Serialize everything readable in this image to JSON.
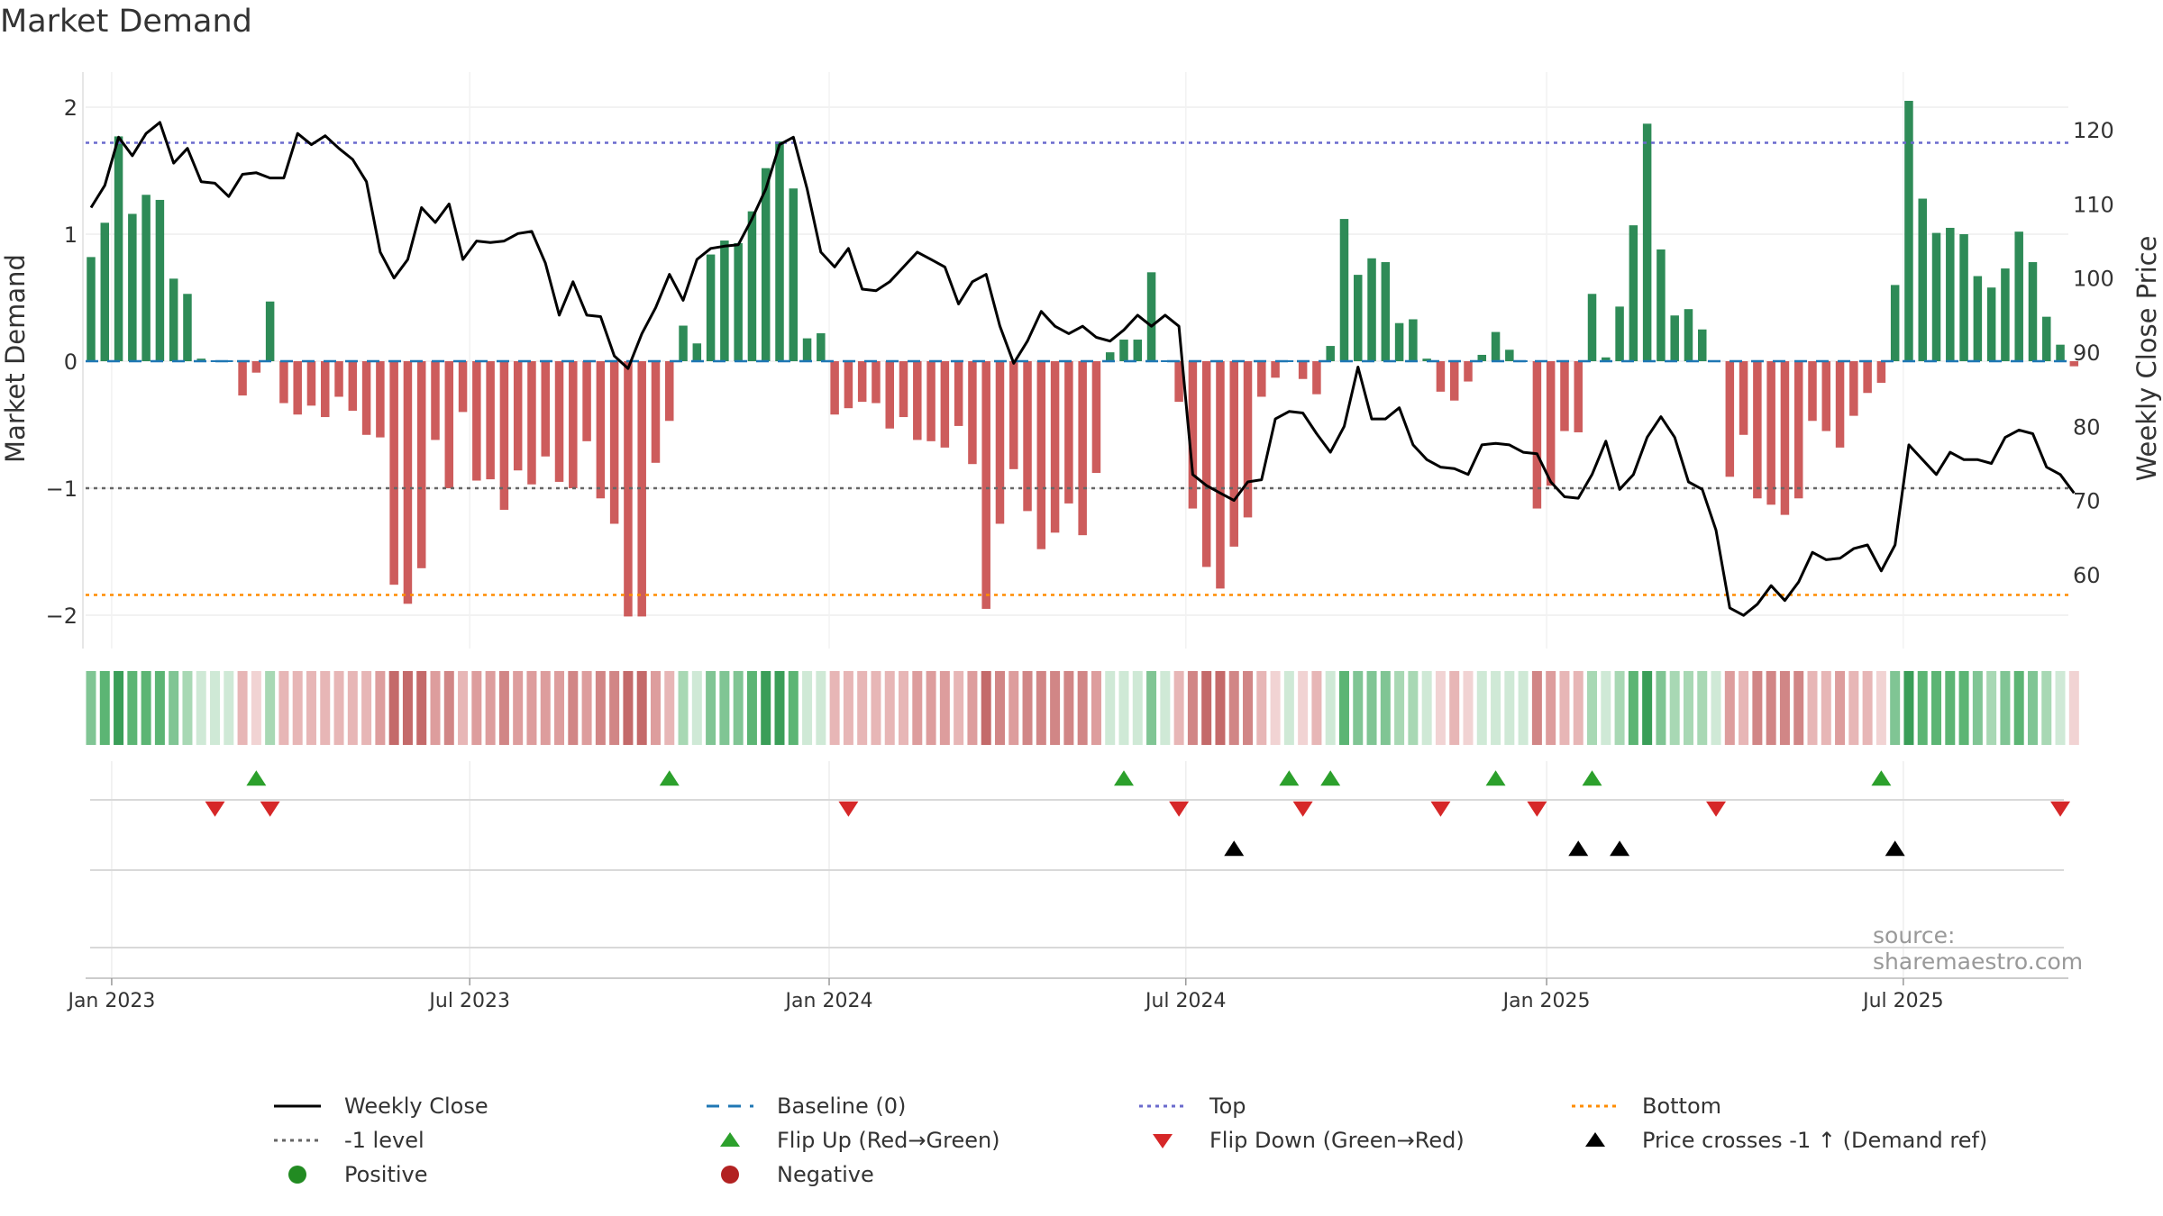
{
  "chart_data": {
    "type": "bar+line",
    "title": "Market Demand",
    "ylabel_left": "Market Demand",
    "ylabel_right": "Weekly Close Price",
    "ylim_left": [
      -2.2,
      2.1
    ],
    "ylim_right": [
      50,
      125
    ],
    "left_ticks": [
      -2,
      -1,
      0,
      1,
      2
    ],
    "left_tick_labels": [
      "−2",
      "−1",
      "0",
      "1",
      "2"
    ],
    "right_ticks": [
      60,
      70,
      80,
      90,
      100,
      110,
      120
    ],
    "right_tick_labels": [
      "60",
      "70",
      "80",
      "90",
      "100",
      "110",
      "120"
    ],
    "x_tick_labels": [
      "Jan 2023",
      "Jul 2023",
      "Jan 2024",
      "Jul 2024",
      "Jan 2025",
      "Jul 2025"
    ],
    "x_tick_weeks": [
      1.5,
      27.5,
      53.6,
      79.5,
      105.7,
      131.6
    ],
    "levels": {
      "top": 1.72,
      "neg_one": -1.0,
      "bottom": -1.84,
      "baseline": 0
    },
    "demand": [
      0.82,
      1.09,
      1.77,
      1.16,
      1.31,
      1.27,
      0.65,
      0.53,
      0.02,
      0.0,
      0.0,
      -0.27,
      -0.09,
      0.47,
      -0.33,
      -0.42,
      -0.35,
      -0.44,
      -0.28,
      -0.39,
      -0.58,
      -0.6,
      -1.76,
      -1.91,
      -1.63,
      -0.62,
      -1.0,
      -0.4,
      -0.94,
      -0.93,
      -1.17,
      -0.86,
      -0.97,
      -0.75,
      -0.95,
      -1.0,
      -0.63,
      -1.08,
      -1.28,
      -2.01,
      -2.01,
      -0.8,
      -0.47,
      0.28,
      0.14,
      0.84,
      0.95,
      0.93,
      1.18,
      1.52,
      1.73,
      1.36,
      0.18,
      0.22,
      -0.42,
      -0.37,
      -0.32,
      -0.33,
      -0.53,
      -0.44,
      -0.62,
      -0.63,
      -0.68,
      -0.51,
      -0.81,
      -1.95,
      -1.28,
      -0.85,
      -1.18,
      -1.48,
      -1.35,
      -1.12,
      -1.37,
      -0.88,
      0.07,
      0.17,
      0.17,
      0.7,
      0.0,
      -0.32,
      -1.16,
      -1.62,
      -1.79,
      -1.46,
      -1.23,
      -0.28,
      -0.13,
      0.0,
      -0.14,
      -0.26,
      0.12,
      1.12,
      0.68,
      0.81,
      0.78,
      0.3,
      0.33,
      0.02,
      -0.24,
      -0.31,
      -0.16,
      0.05,
      0.23,
      0.09,
      0.0,
      -1.16,
      -0.98,
      -0.55,
      -0.56,
      0.53,
      0.03,
      0.43,
      1.07,
      1.87,
      0.88,
      0.36,
      0.41,
      0.25,
      0.0,
      -0.91,
      -0.58,
      -1.08,
      -1.13,
      -1.21,
      -1.08,
      -0.47,
      -0.55,
      -0.68,
      -0.43,
      -0.25,
      -0.17,
      0.6,
      2.05,
      1.28,
      1.01,
      1.05,
      1.0,
      0.67,
      0.58,
      0.73,
      1.02,
      0.78,
      0.35,
      0.13,
      -0.04
    ],
    "close": [
      109.5,
      112.5,
      119,
      116.5,
      119.5,
      121,
      115.5,
      117.5,
      113,
      112.8,
      111,
      114,
      114.2,
      113.5,
      113.5,
      119.5,
      118,
      119.2,
      117.5,
      116,
      113,
      103.5,
      100,
      102.5,
      109.5,
      107.5,
      110,
      102.5,
      105,
      104.8,
      105,
      106,
      106.3,
      102,
      95,
      99.5,
      95,
      94.8,
      89.5,
      87.8,
      92.5,
      96,
      100.5,
      97,
      102.5,
      104,
      104.3,
      104.5,
      108,
      112,
      118,
      119,
      112,
      103.5,
      101.5,
      104,
      98.5,
      98.3,
      99.5,
      101.5,
      103.5,
      102.5,
      101.5,
      96.5,
      99.5,
      100.5,
      93.5,
      88.5,
      91.5,
      95.5,
      93.5,
      92.5,
      93.5,
      92,
      91.5,
      93,
      95,
      93.5,
      95,
      93.5,
      73.5,
      72,
      71,
      70,
      72.5,
      72.8,
      81,
      82,
      81.8,
      79,
      76.5,
      80,
      88,
      81,
      81,
      82.5,
      77.5,
      75.5,
      74.5,
      74.3,
      73.5,
      77.5,
      77.7,
      77.5,
      76.5,
      76.3,
      72.5,
      70.5,
      70.3,
      73.5,
      78,
      71.5,
      73.5,
      78.5,
      81.3,
      78.5,
      72.5,
      71.5,
      66,
      55.5,
      54.5,
      56,
      58.5,
      56.5,
      59,
      63,
      62,
      62.2,
      63.5,
      64,
      60.5,
      64,
      77.5,
      75.5,
      73.5,
      76.5,
      75.5,
      75.5,
      75,
      78.5,
      79.5,
      79,
      74.5,
      73.5,
      71
    ],
    "flip_up_weeks": [
      12,
      42,
      75,
      87,
      90,
      102,
      109,
      130
    ],
    "flip_down_weeks": [
      9,
      13,
      55,
      79,
      88,
      98,
      105,
      118,
      143
    ],
    "price_cross_weeks": [
      83,
      108,
      111,
      131
    ],
    "legend": [
      {
        "label": "Weekly Close",
        "symbol": "line-solid"
      },
      {
        "label": "Baseline (0)",
        "symbol": "line-dash"
      },
      {
        "label": "Top",
        "symbol": "line-dot-purple"
      },
      {
        "label": "Bottom",
        "symbol": "line-dot-orange"
      },
      {
        "label": "-1 level",
        "symbol": "line-dot-gray"
      },
      {
        "label": "Flip Up (Red→Green)",
        "symbol": "triangle-up-green"
      },
      {
        "label": "Flip Down (Green→Red)",
        "symbol": "triangle-down-red"
      },
      {
        "label": "Price crosses -1 ↑ (Demand ref)",
        "symbol": "triangle-up-black"
      },
      {
        "label": "Positive",
        "symbol": "dot-green"
      },
      {
        "label": "Negative",
        "symbol": "dot-red"
      }
    ]
  },
  "colors": {
    "positive": "#2e8b57",
    "negative": "#cd5c5c",
    "line": "#000000",
    "baseline": "#1f77b4",
    "top": "#6a6acd",
    "bottom": "#ff8c00",
    "neg_one": "#666666",
    "flip_up": "#2ca02c",
    "flip_down": "#d62728",
    "cross": "#000000",
    "legend_positive": "#228b22",
    "legend_negative": "#b22222"
  },
  "source": "source: sharemaestro.com"
}
